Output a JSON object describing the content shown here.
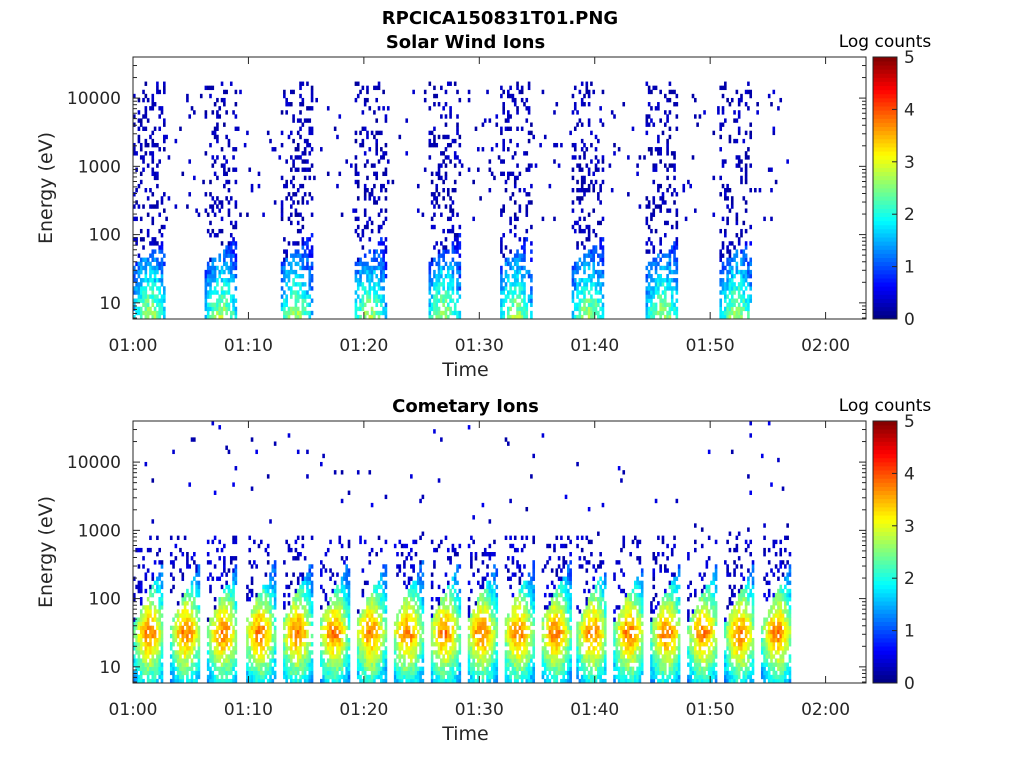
{
  "figure": {
    "title": "RPCICA150831T01.PNG"
  },
  "chart_data": [
    {
      "type": "heatmap",
      "title": "Solar Wind Ions",
      "xlabel": "Time",
      "ylabel": "Energy (eV)",
      "x_range_minutes": [
        0,
        63.5
      ],
      "x_ticks": [
        {
          "t": 0,
          "label": "01:00"
        },
        {
          "t": 10,
          "label": "01:10"
        },
        {
          "t": 20,
          "label": "01:20"
        },
        {
          "t": 30,
          "label": "01:30"
        },
        {
          "t": 40,
          "label": "01:40"
        },
        {
          "t": 50,
          "label": "01:50"
        },
        {
          "t": 60,
          "label": "02:00"
        }
      ],
      "y_scale": "log",
      "y_range_eV": [
        5.8,
        40000
      ],
      "y_ticks": [
        {
          "v": 10,
          "label": "10"
        },
        {
          "v": 100,
          "label": "100"
        },
        {
          "v": 1000,
          "label": "1000"
        },
        {
          "v": 10000,
          "label": "10000"
        }
      ],
      "colorbar": {
        "label": "Log counts",
        "range": [
          0,
          5
        ],
        "ticks": [
          "0",
          "1",
          "2",
          "3",
          "4",
          "5"
        ],
        "colormap": "jet"
      },
      "sweep_start_minutes": [
        0,
        6.2,
        12.6,
        19.0,
        25.4,
        31.6,
        38.0,
        44.4,
        50.8
      ],
      "sweep_duration_minutes": 2.8,
      "low_energy_peak_log_counts": 2.4,
      "high_energy_log_counts": 0.3,
      "data_end_minutes": 57
    },
    {
      "type": "heatmap",
      "title": "Cometary Ions",
      "xlabel": "Time",
      "ylabel": "Energy (eV)",
      "x_range_minutes": [
        0,
        63.5
      ],
      "x_ticks": [
        {
          "t": 0,
          "label": "01:00"
        },
        {
          "t": 10,
          "label": "01:10"
        },
        {
          "t": 20,
          "label": "01:20"
        },
        {
          "t": 30,
          "label": "01:30"
        },
        {
          "t": 40,
          "label": "01:40"
        },
        {
          "t": 50,
          "label": "01:50"
        },
        {
          "t": 60,
          "label": "02:00"
        }
      ],
      "y_scale": "log",
      "y_range_eV": [
        5.8,
        40000
      ],
      "y_ticks": [
        {
          "v": 10,
          "label": "10"
        },
        {
          "v": 100,
          "label": "100"
        },
        {
          "v": 1000,
          "label": "1000"
        },
        {
          "v": 10000,
          "label": "10000"
        }
      ],
      "colorbar": {
        "label": "Log counts",
        "range": [
          0,
          5
        ],
        "ticks": [
          "0",
          "1",
          "2",
          "3",
          "4",
          "5"
        ],
        "colormap": "jet"
      },
      "sweep_start_minutes": [
        0,
        3.2,
        6.4,
        9.6,
        12.8,
        16.0,
        19.2,
        22.4,
        25.6,
        28.8,
        32.0,
        35.2,
        38.4,
        41.6,
        44.8,
        48.0,
        51.2,
        54.4
      ],
      "sweep_duration_minutes": 2.6,
      "low_energy_peak_log_counts": 3.6,
      "high_energy_log_counts": 0.4,
      "data_end_minutes": 57
    }
  ]
}
